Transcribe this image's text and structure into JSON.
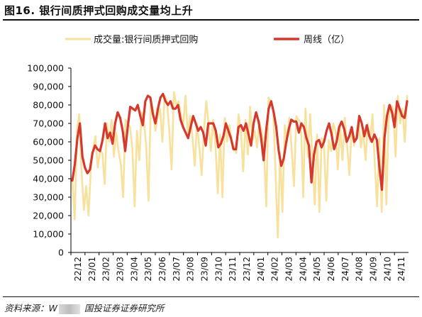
{
  "figure": {
    "title": "图16. 银行间质押式回购成交量均上升",
    "source_prefix": "资料来源：W",
    "source_suffix": "国投证券证券研究所"
  },
  "colors": {
    "daily": "#F7E19C",
    "weekly": "#D6382B",
    "axis": "#000000"
  },
  "chart_data": {
    "type": "line",
    "title": "",
    "xlabel": "",
    "ylabel": "",
    "unit": "亿",
    "ylim": [
      0,
      100000
    ],
    "yticks": [
      0,
      10000,
      20000,
      30000,
      40000,
      50000,
      60000,
      70000,
      80000,
      90000,
      100000
    ],
    "ytick_labels": [
      "0",
      "10,000",
      "20,000",
      "30,000",
      "40,000",
      "50,000",
      "60,000",
      "70,000",
      "80,000",
      "90,000",
      "100,000"
    ],
    "x_tick_labels": [
      "22/12",
      "23/01",
      "23/02",
      "23/03",
      "23/04",
      "23/05",
      "23/06",
      "23/07",
      "23/08",
      "23/09",
      "23/10",
      "23/11",
      "23/12",
      "24/01",
      "24/02",
      "24/03",
      "24/04",
      "24/05",
      "24/06",
      "24/07",
      "24/08",
      "24/09",
      "24/10",
      "24/11"
    ],
    "legend": {
      "position": "top",
      "entries": [
        "成交量:银行间质押式回购",
        "周线（亿）"
      ]
    },
    "grid": false,
    "series": [
      {
        "name": "成交量:银行间质押式回购",
        "style": "thin-line",
        "values": [
          40000,
          18000,
          66000,
          75000,
          44000,
          23000,
          36000,
          20000,
          45000,
          56000,
          63000,
          46000,
          55000,
          54000,
          37000,
          70000,
          60000,
          72000,
          52000,
          65000,
          55000,
          48000,
          30000,
          72000,
          70000,
          68000,
          56000,
          25000,
          66000,
          50000,
          76000,
          72000,
          57000,
          28000,
          82000,
          77000,
          66000,
          74000,
          78000,
          60000,
          85000,
          82000,
          66000,
          45000,
          87000,
          80000,
          82000,
          75000,
          68000,
          85000,
          64000,
          74000,
          63000,
          47000,
          70000,
          57000,
          42000,
          66000,
          82000,
          70000,
          55000,
          72000,
          58000,
          32000,
          64000,
          30000,
          73000,
          60000,
          69000,
          61000,
          57000,
          54000,
          75000,
          66000,
          44000,
          72000,
          53000,
          79000,
          61000,
          66000,
          57000,
          71000,
          66000,
          56000,
          25000,
          84000,
          82000,
          78000,
          44000,
          8000,
          54000,
          22000,
          69000,
          60000,
          73000,
          56000,
          36000,
          74000,
          72000,
          70000,
          30000,
          78000,
          52000,
          75000,
          51000,
          26000,
          64000,
          22000,
          62000,
          58000,
          28000,
          61000,
          55000,
          70000,
          66000,
          45000,
          68000,
          50000,
          73000,
          58000,
          42000,
          68000,
          58000,
          64000,
          72000,
          57000,
          66000,
          50000,
          70000,
          60000,
          75000,
          48000,
          25000,
          62000,
          22000,
          80000,
          26000,
          72000,
          80000,
          78000,
          52000,
          85000,
          70000,
          78000,
          60000,
          85000
        ]
      },
      {
        "name": "周线（亿）",
        "style": "thick-line",
        "values": [
          39000,
          48000,
          62000,
          70000,
          52000,
          46000,
          43000,
          45000,
          54000,
          58000,
          56000,
          55000,
          61000,
          70000,
          62000,
          65000,
          59000,
          70000,
          76000,
          73000,
          66000,
          55000,
          68000,
          79000,
          78000,
          77000,
          80000,
          74000,
          69000,
          82000,
          85000,
          84000,
          75000,
          70000,
          78000,
          84000,
          86000,
          82000,
          80000,
          82000,
          78000,
          78000,
          80000,
          72000,
          68000,
          65000,
          62000,
          68000,
          74000,
          70000,
          66000,
          68000,
          65000,
          58000,
          70000,
          70000,
          70000,
          66000,
          57000,
          59000,
          63000,
          70000,
          66000,
          62000,
          56000,
          56000,
          68000,
          69000,
          66000,
          70000,
          64000,
          58000,
          70000,
          76000,
          71000,
          62000,
          50000,
          66000,
          78000,
          82000,
          76000,
          68000,
          55000,
          47000,
          51000,
          60000,
          67000,
          72000,
          71000,
          71000,
          65000,
          70000,
          68000,
          62000,
          58000,
          38000,
          53000,
          60000,
          61000,
          57000,
          60000,
          66000,
          70000,
          64000,
          56000,
          60000,
          68000,
          71000,
          67000,
          60000,
          63000,
          68000,
          60000,
          62000,
          74000,
          70000,
          63000,
          69000,
          63000,
          60000,
          64000,
          61000,
          46000,
          34000,
          62000,
          74000,
          80000,
          76000,
          68000,
          82000,
          78000,
          74000,
          73000,
          82000
        ]
      }
    ]
  }
}
